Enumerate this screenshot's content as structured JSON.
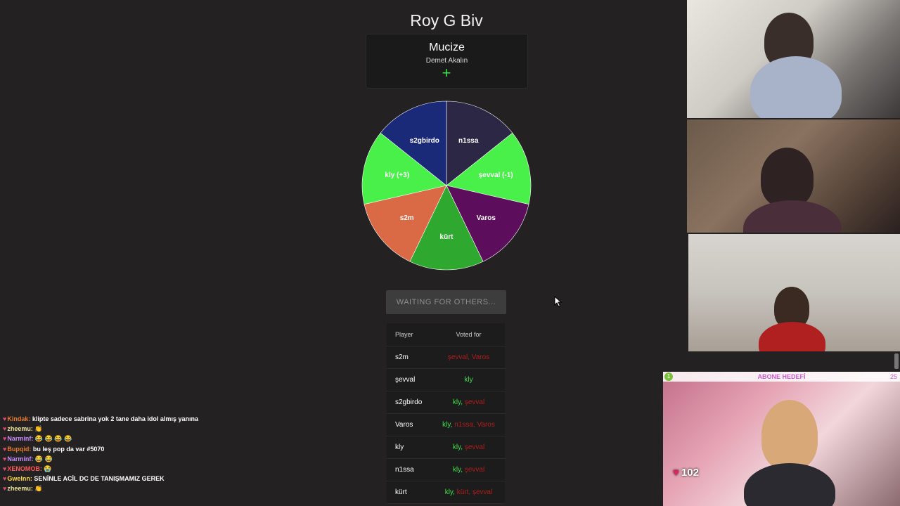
{
  "game": {
    "title": "Roy G Biv",
    "song": "Mucize",
    "artist": "Demet Akalın",
    "add_label": "+",
    "wait_button": "WAITING FOR OTHERS..."
  },
  "wheel": {
    "slices": [
      {
        "label": "n1ssa",
        "color": "#2b2745",
        "value": 1
      },
      {
        "label": "şevval  (-1)",
        "color": "#4af04a",
        "value": 1
      },
      {
        "label": "Varos",
        "color": "#5c0d5c",
        "value": 1
      },
      {
        "label": "kürt",
        "color": "#2ea82e",
        "value": 1
      },
      {
        "label": "s2m",
        "color": "#d96a45",
        "value": 1
      },
      {
        "label": "kly (+3)",
        "color": "#4af04a",
        "value": 1
      },
      {
        "label": "s2gbirdo",
        "color": "#1a2a78",
        "value": 1
      }
    ]
  },
  "votes": {
    "headers": {
      "player": "Player",
      "voted_for": "Voted for"
    },
    "rows": [
      {
        "player": "s2m",
        "votes": [
          {
            "name": "şevval",
            "ok": false
          },
          {
            "name": "Varos",
            "ok": false
          }
        ]
      },
      {
        "player": "şevval",
        "votes": [
          {
            "name": "kly",
            "ok": true
          }
        ]
      },
      {
        "player": "s2gbirdo",
        "votes": [
          {
            "name": "kly",
            "ok": true
          },
          {
            "name": "şevval",
            "ok": false
          }
        ]
      },
      {
        "player": "Varos",
        "votes": [
          {
            "name": "kly",
            "ok": true
          },
          {
            "name": "n1ssa",
            "ok": false
          },
          {
            "name": "Varos",
            "ok": false
          }
        ]
      },
      {
        "player": "kly",
        "votes": [
          {
            "name": "kly",
            "ok": true
          },
          {
            "name": "şevval",
            "ok": false
          }
        ]
      },
      {
        "player": "n1ssa",
        "votes": [
          {
            "name": "kly",
            "ok": true
          },
          {
            "name": "şevval",
            "ok": false
          }
        ]
      },
      {
        "player": "kürt",
        "votes": [
          {
            "name": "kly",
            "ok": true
          },
          {
            "name": "kürt",
            "ok": false
          },
          {
            "name": "şevval",
            "ok": false
          }
        ]
      }
    ]
  },
  "stream": {
    "sub_goal_label": "ABONE HEDEFİ",
    "sub_goal_left": "1",
    "sub_goal_right": "25",
    "heart_count": "102"
  },
  "chat": [
    {
      "user": "Kindak",
      "cls": "u",
      "text": "klipte sadece sabrina yok 2 tane daha idol almış yanına"
    },
    {
      "user": "zheemu",
      "cls": "u2",
      "text": "👏"
    },
    {
      "user": "Narminf",
      "cls": "u3",
      "text": "😂 😂 😂 😂"
    },
    {
      "user": "Bupqid",
      "cls": "u4",
      "text": "bu leş pop da var #5070"
    },
    {
      "user": "Narminf",
      "cls": "u3",
      "text": "😂 😂"
    },
    {
      "user": "XENOMOB",
      "cls": "u5",
      "text": "😭"
    },
    {
      "user": "Gwelnn",
      "cls": "u6",
      "text": "SENİNLE ACİL DC DE TANIŞMAMIZ GEREK"
    },
    {
      "user": "zheemu",
      "cls": "u2",
      "text": "👏"
    }
  ]
}
